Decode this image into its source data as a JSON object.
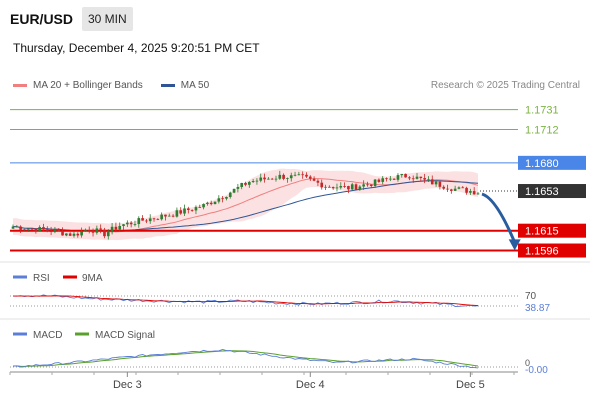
{
  "header": {
    "symbol": "EUR/USD",
    "timeframe": "30 MIN",
    "datetime": "Thursday, December 4, 2025 9:20:51 PM CET"
  },
  "legend": {
    "items": [
      {
        "label": "MA 20 + Bollinger Bands",
        "color": "#f08080"
      },
      {
        "label": "MA 50",
        "color": "#2f5597"
      }
    ],
    "credit": "Research © 2025 Trading Central"
  },
  "colors": {
    "candle_up": "#2e7d32",
    "candle_down": "#c62828",
    "resistance": "#7cb342",
    "pivot": "#4a86e8",
    "support": "#e00000",
    "band_fill": "#f8c8c8",
    "ma20": "#f08080",
    "ma50": "#2f5597",
    "rsi": "#5b7fd6",
    "rsi_ma": "#e00000",
    "macd": "#5b7fd6",
    "macd_signal": "#5aa02c",
    "arrow": "#2a5d9f"
  },
  "chart_data": [
    {
      "type": "candlestick",
      "ylim": [
        1.1585,
        1.1745
      ],
      "x_ticks": [
        {
          "label": "Dec 3",
          "index": 30
        },
        {
          "label": "Dec 4",
          "index": 78
        },
        {
          "label": "Dec 5",
          "index": 120
        }
      ],
      "levels": [
        {
          "label": "1.1731",
          "value": 1.1731,
          "kind": "resistance"
        },
        {
          "label": "1.1712",
          "value": 1.1712,
          "kind": "resistance"
        },
        {
          "label": "1.1680",
          "value": 1.168,
          "kind": "pivot"
        },
        {
          "label": "1.1615",
          "value": 1.1615,
          "kind": "support"
        },
        {
          "label": "1.1596",
          "value": 1.1596,
          "kind": "support"
        }
      ],
      "last_price": {
        "label": "1.1653",
        "value": 1.1653
      },
      "forecast": {
        "from_index": 122,
        "from_value": 1.1652,
        "to_index": 129,
        "to_value": 1.16
      },
      "close_anchors": [
        [
          0,
          1.1619
        ],
        [
          10,
          1.1615
        ],
        [
          16,
          1.1611
        ],
        [
          20,
          1.1617
        ],
        [
          24,
          1.1612
        ],
        [
          28,
          1.162
        ],
        [
          34,
          1.1625
        ],
        [
          42,
          1.1631
        ],
        [
          50,
          1.1639
        ],
        [
          56,
          1.165
        ],
        [
          62,
          1.1662
        ],
        [
          70,
          1.1667
        ],
        [
          76,
          1.1666
        ],
        [
          82,
          1.1658
        ],
        [
          88,
          1.1656
        ],
        [
          95,
          1.1661
        ],
        [
          100,
          1.1666
        ],
        [
          104,
          1.1668
        ],
        [
          108,
          1.1663
        ],
        [
          112,
          1.1659
        ],
        [
          116,
          1.1655
        ],
        [
          122,
          1.1652
        ]
      ]
    },
    {
      "type": "line",
      "title": "RSI",
      "series": [
        {
          "name": "RSI"
        },
        {
          "name": "9MA"
        }
      ],
      "ylim": [
        0,
        100
      ],
      "levels": [
        {
          "label": "70",
          "value": 70
        }
      ],
      "last_value_label": "38.87",
      "values_anchor": [
        [
          0,
          62
        ],
        [
          10,
          60
        ],
        [
          20,
          55
        ],
        [
          30,
          52
        ],
        [
          40,
          50
        ],
        [
          50,
          48
        ],
        [
          60,
          50
        ],
        [
          70,
          46
        ],
        [
          80,
          44
        ],
        [
          90,
          47
        ],
        [
          100,
          50
        ],
        [
          110,
          45
        ],
        [
          122,
          38.87
        ]
      ]
    },
    {
      "type": "line",
      "title": "MACD",
      "series": [
        {
          "name": "MACD"
        },
        {
          "name": "MACD Signal"
        }
      ],
      "last_value_label": "-0.00",
      "zero_label": "0",
      "values_anchor": [
        [
          0,
          0.0
        ],
        [
          15,
          0.00012
        ],
        [
          30,
          0.00028
        ],
        [
          45,
          0.00042
        ],
        [
          55,
          0.00048
        ],
        [
          65,
          0.00035
        ],
        [
          75,
          0.00022
        ],
        [
          85,
          0.00012
        ],
        [
          95,
          0.00018
        ],
        [
          105,
          0.00022
        ],
        [
          115,
          8e-05
        ],
        [
          122,
          -2e-05
        ]
      ]
    }
  ]
}
